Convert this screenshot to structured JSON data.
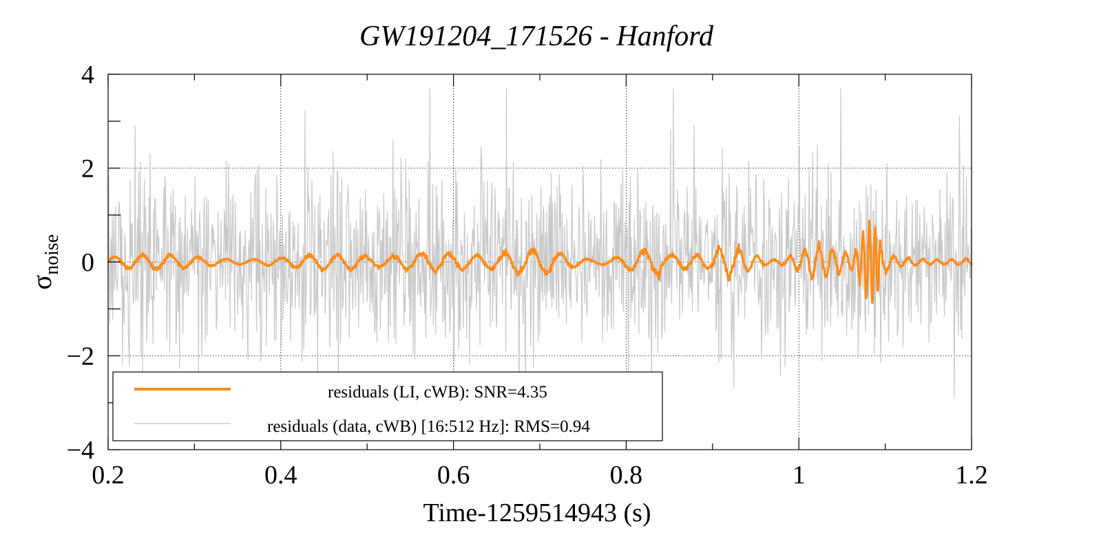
{
  "chart_data": {
    "type": "line",
    "title": "GW191204_171526 - Hanford",
    "xlabel": "Time-1259514943 (s)",
    "ylabel_main": "σ",
    "ylabel_sub": "noise",
    "xlim": [
      0.2,
      1.2
    ],
    "ylim": [
      -4,
      4
    ],
    "x_ticks": [
      0.2,
      0.4,
      0.6,
      0.8,
      1.0,
      1.2
    ],
    "x_tick_labels": [
      "0.2",
      "0.4",
      "0.6",
      "0.8",
      "1",
      "1.2"
    ],
    "x_minor_ticks": [
      0.3,
      0.5,
      0.7,
      0.9,
      1.1
    ],
    "y_ticks": [
      -4,
      -2,
      0,
      2,
      4
    ],
    "y_tick_labels": [
      "−4",
      "−2",
      "0",
      "2",
      "4"
    ],
    "y_minor_ticks": [
      -3,
      -1,
      1,
      3
    ],
    "grid": true,
    "legend_position": "bottom-left",
    "series": [
      {
        "name": "residuals (data, cWB) [16:512 Hz]: RMS=0.94",
        "color": "#c8c8c8",
        "style": "noise",
        "rms": 0.94,
        "x_range": [
          0.2,
          1.2
        ]
      },
      {
        "name": "residuals (LI, cWB): SNR=4.35",
        "color": "#ff8c1a",
        "style": "wave",
        "snr": 4.35,
        "x_range": [
          0.2,
          1.2
        ]
      }
    ]
  }
}
